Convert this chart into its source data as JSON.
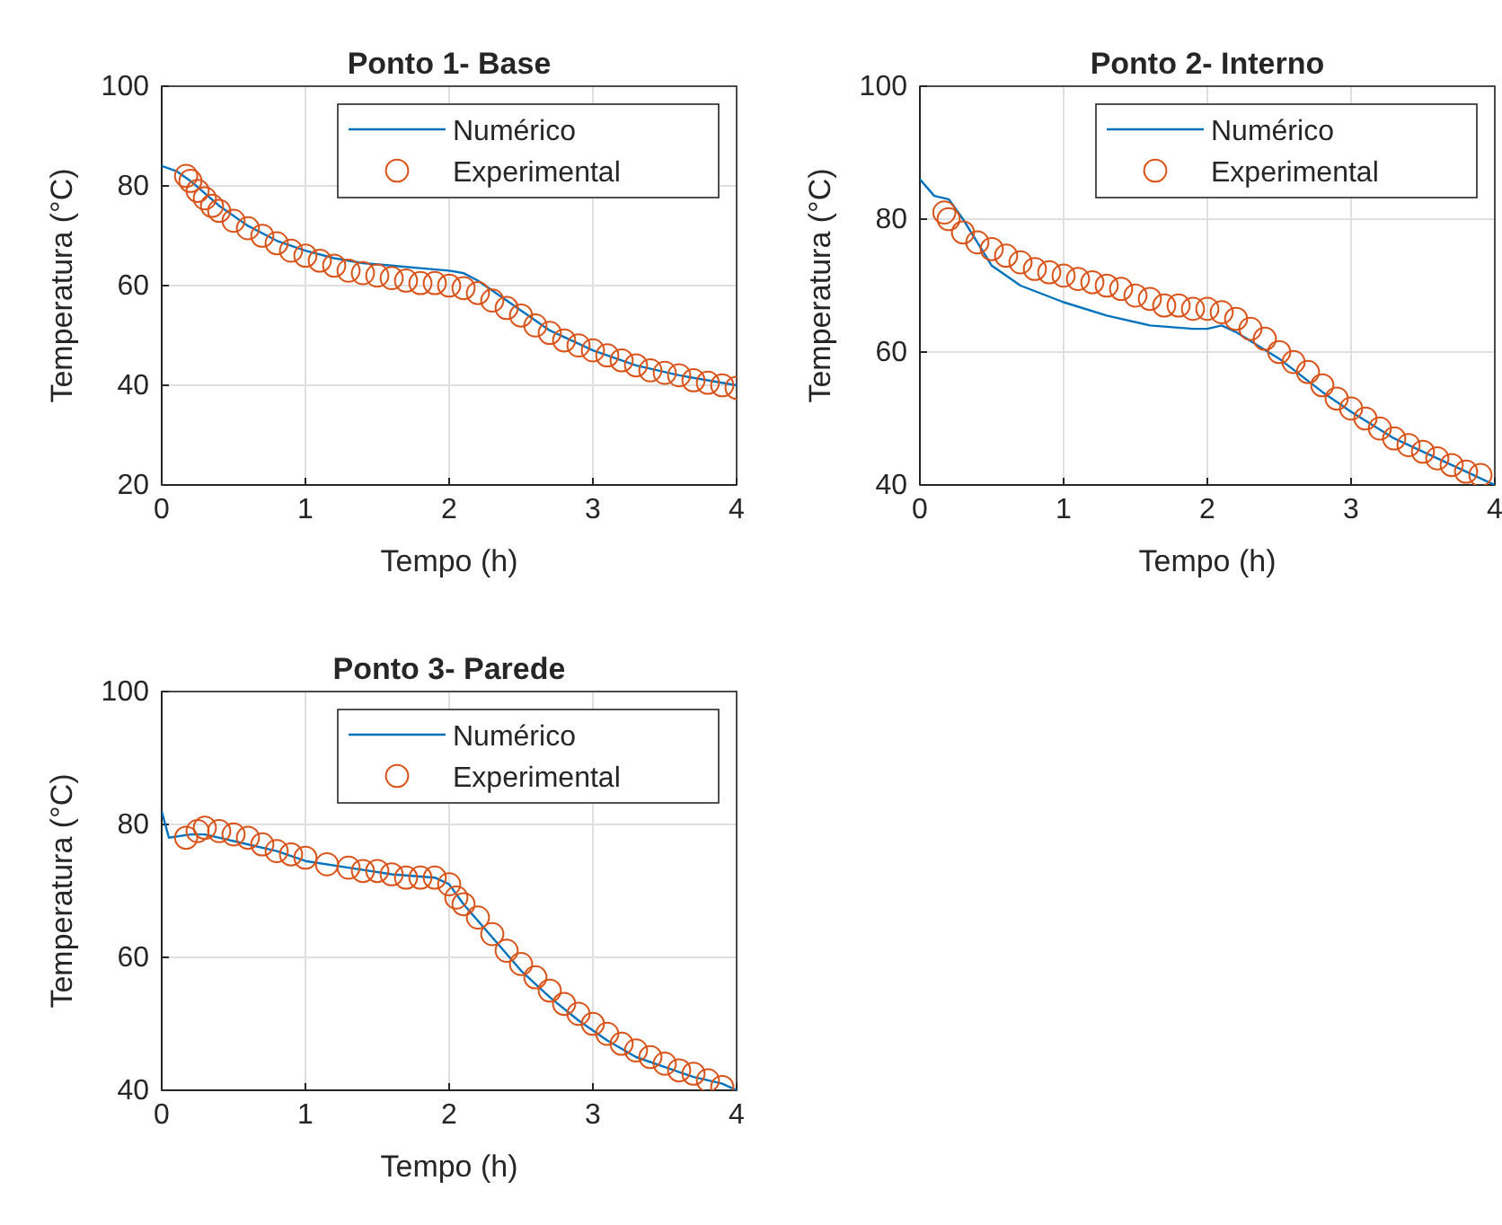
{
  "chart_data": [
    {
      "type": "line",
      "title": "Ponto 1- Base",
      "xlabel": "Tempo (h)",
      "ylabel": "Temperatura (°C)",
      "xlim": [
        0,
        4
      ],
      "xticks": [
        0,
        1,
        2,
        3,
        4
      ],
      "ylim": [
        20,
        100
      ],
      "yticks": [
        20,
        40,
        60,
        80,
        100
      ],
      "grid": true,
      "legend": "top right",
      "series": [
        {
          "name": "Numérico",
          "type": "line",
          "color": "#0072bd",
          "x": [
            0,
            0.1,
            0.2,
            0.4,
            0.6,
            0.8,
            1.0,
            1.2,
            1.4,
            1.6,
            1.8,
            2.0,
            2.1,
            2.2,
            2.3,
            2.5,
            2.7,
            3.0,
            3.3,
            3.6,
            3.8,
            4.0
          ],
          "values": [
            84,
            83,
            81,
            76,
            72,
            69,
            67,
            65.5,
            64.5,
            64,
            63.5,
            63,
            62.5,
            61,
            59,
            55,
            51,
            47,
            44,
            42,
            41,
            40
          ]
        },
        {
          "name": "Experimental",
          "type": "scatter",
          "marker": "circle",
          "color": "#d95319",
          "x": [
            0.17,
            0.2,
            0.25,
            0.3,
            0.35,
            0.4,
            0.5,
            0.6,
            0.7,
            0.8,
            0.9,
            1.0,
            1.1,
            1.2,
            1.3,
            1.4,
            1.5,
            1.6,
            1.7,
            1.8,
            1.9,
            2.0,
            2.1,
            2.2,
            2.3,
            2.4,
            2.5,
            2.6,
            2.7,
            2.8,
            2.9,
            3.0,
            3.1,
            3.2,
            3.3,
            3.4,
            3.5,
            3.6,
            3.7,
            3.8,
            3.9,
            4.0
          ],
          "values": [
            82,
            81,
            79,
            77.5,
            76,
            75,
            73,
            71.5,
            70,
            68.5,
            67,
            66,
            65,
            64,
            63,
            62.5,
            62,
            61.5,
            61,
            60.5,
            60.5,
            60,
            59.5,
            58.5,
            57,
            55.5,
            54,
            52,
            50.5,
            49,
            48,
            47,
            46,
            45,
            44,
            43,
            42.5,
            42,
            41,
            40.5,
            40,
            39.5
          ]
        }
      ]
    },
    {
      "type": "line",
      "title": "Ponto 2- Interno",
      "xlabel": "Tempo (h)",
      "ylabel": "Temperatura (°C)",
      "xlim": [
        0,
        4
      ],
      "xticks": [
        0,
        1,
        2,
        3,
        4
      ],
      "ylim": [
        40,
        100
      ],
      "yticks": [
        40,
        60,
        80,
        100
      ],
      "grid": true,
      "legend": "top right",
      "series": [
        {
          "name": "Numérico",
          "type": "line",
          "color": "#0072bd",
          "x": [
            0,
            0.1,
            0.2,
            0.3,
            0.5,
            0.7,
            1.0,
            1.3,
            1.6,
            1.9,
            2.0,
            2.1,
            2.2,
            2.5,
            2.8,
            3.0,
            3.3,
            3.6,
            3.8,
            3.9,
            4.0
          ],
          "values": [
            86,
            83.5,
            83,
            80,
            73,
            70,
            67.5,
            65.5,
            64,
            63.5,
            63.5,
            64,
            63,
            59,
            54,
            51,
            47,
            44,
            42,
            41,
            40
          ]
        },
        {
          "name": "Experimental",
          "type": "scatter",
          "marker": "circle",
          "color": "#d95319",
          "x": [
            0.17,
            0.2,
            0.3,
            0.4,
            0.5,
            0.6,
            0.7,
            0.8,
            0.9,
            1.0,
            1.1,
            1.2,
            1.3,
            1.4,
            1.5,
            1.6,
            1.7,
            1.8,
            1.9,
            2.0,
            2.1,
            2.2,
            2.3,
            2.4,
            2.5,
            2.6,
            2.7,
            2.8,
            2.9,
            3.0,
            3.1,
            3.2,
            3.3,
            3.4,
            3.5,
            3.6,
            3.7,
            3.8,
            3.9
          ],
          "values": [
            81,
            80,
            78,
            76.5,
            75.5,
            74.5,
            73.5,
            72.5,
            72,
            71.5,
            71,
            70.5,
            70,
            69.5,
            68.5,
            68,
            67,
            67,
            66.5,
            66.5,
            66,
            65,
            63.5,
            62,
            60,
            58.5,
            57,
            55,
            53,
            51.5,
            50,
            48.5,
            47,
            46,
            45,
            44,
            43,
            42,
            41.5
          ]
        }
      ]
    },
    {
      "type": "line",
      "title": "Ponto 3- Parede",
      "xlabel": "Tempo (h)",
      "ylabel": "Temperatura (°C)",
      "xlim": [
        0,
        4
      ],
      "xticks": [
        0,
        1,
        2,
        3,
        4
      ],
      "ylim": [
        40,
        100
      ],
      "yticks": [
        40,
        60,
        80,
        100
      ],
      "grid": true,
      "legend": "top right",
      "series": [
        {
          "name": "Numérico",
          "type": "line",
          "color": "#0072bd",
          "x": [
            0,
            0.05,
            0.2,
            0.3,
            0.5,
            0.8,
            1.0,
            1.3,
            1.6,
            1.9,
            2.0,
            2.1,
            2.3,
            2.5,
            2.7,
            2.9,
            3.1,
            3.3,
            3.5,
            3.7,
            3.9,
            4.0
          ],
          "values": [
            82,
            78,
            78.5,
            78.5,
            77.5,
            76,
            74.5,
            73.5,
            72.5,
            72,
            71,
            68,
            63,
            58,
            54,
            50.5,
            47.5,
            45,
            43.5,
            42,
            41,
            40
          ]
        },
        {
          "name": "Experimental",
          "type": "scatter",
          "marker": "circle",
          "color": "#d95319",
          "x": [
            0.17,
            0.25,
            0.3,
            0.4,
            0.5,
            0.6,
            0.7,
            0.8,
            0.9,
            1.0,
            1.15,
            1.3,
            1.4,
            1.5,
            1.6,
            1.7,
            1.8,
            1.9,
            2.0,
            2.05,
            2.1,
            2.2,
            2.3,
            2.4,
            2.5,
            2.6,
            2.7,
            2.8,
            2.9,
            3.0,
            3.1,
            3.2,
            3.3,
            3.4,
            3.5,
            3.6,
            3.7,
            3.8,
            3.9
          ],
          "values": [
            78,
            79,
            79.5,
            79,
            78.5,
            78,
            77,
            76,
            75.5,
            75,
            74,
            73.5,
            73,
            73,
            72.5,
            72,
            72,
            72,
            71,
            69,
            68,
            66,
            63.5,
            61,
            59,
            57,
            55,
            53,
            51.5,
            50,
            48.5,
            47,
            46,
            45,
            44,
            43,
            42.5,
            41.5,
            40.5
          ]
        }
      ]
    }
  ]
}
